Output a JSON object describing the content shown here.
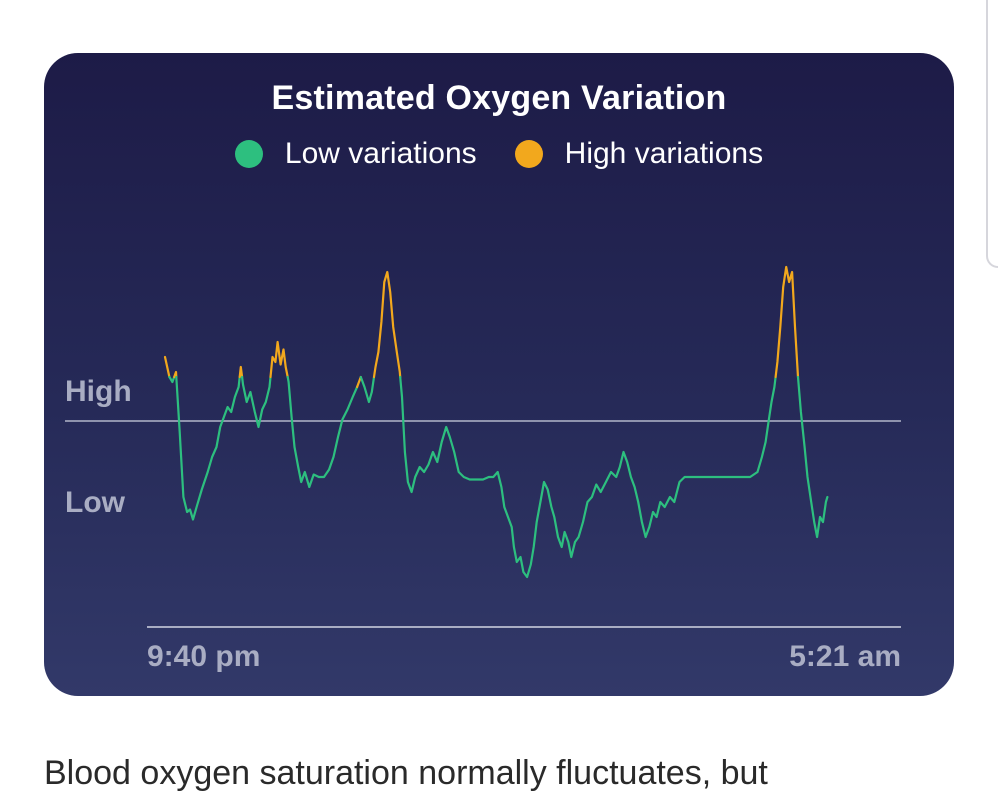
{
  "chart_data": {
    "type": "line",
    "title": "Estimated Oxygen Variation",
    "legend": [
      {
        "label": "Low variations",
        "color": "#2dbf7f"
      },
      {
        "label": "High variations",
        "color": "#f2a81d"
      }
    ],
    "y_axis": {
      "labels": [
        "High",
        "Low"
      ],
      "range": [
        0,
        1.6
      ],
      "threshold": 1.0,
      "threshold_label": "High",
      "low_label_value": 0.72
    },
    "x_axis": {
      "labels": [
        "9:40 pm",
        "5:21 am"
      ],
      "range": [
        0,
        100
      ]
    },
    "colors": {
      "low": "#2dbf7f",
      "high": "#f2a81d",
      "threshold_line": "#8f93ad",
      "axis_line": "#a9adc3",
      "tick_label": "#a9adc3"
    },
    "points": [
      [
        0.0,
        1.08
      ],
      [
        0.6,
        1.0
      ],
      [
        1.0,
        0.98
      ],
      [
        1.5,
        1.02
      ],
      [
        2.0,
        0.78
      ],
      [
        2.5,
        0.52
      ],
      [
        3.0,
        0.46
      ],
      [
        3.4,
        0.47
      ],
      [
        3.8,
        0.43
      ],
      [
        4.3,
        0.48
      ],
      [
        5.0,
        0.55
      ],
      [
        5.8,
        0.62
      ],
      [
        6.4,
        0.68
      ],
      [
        7.0,
        0.72
      ],
      [
        7.5,
        0.8
      ],
      [
        8.0,
        0.84
      ],
      [
        8.5,
        0.88
      ],
      [
        9.0,
        0.86
      ],
      [
        9.5,
        0.92
      ],
      [
        10.0,
        0.96
      ],
      [
        10.3,
        1.04
      ],
      [
        10.6,
        0.97
      ],
      [
        11.1,
        0.9
      ],
      [
        11.6,
        0.94
      ],
      [
        12.2,
        0.86
      ],
      [
        12.7,
        0.8
      ],
      [
        13.2,
        0.87
      ],
      [
        13.7,
        0.9
      ],
      [
        14.2,
        0.96
      ],
      [
        14.6,
        1.08
      ],
      [
        15.0,
        1.06
      ],
      [
        15.3,
        1.14
      ],
      [
        15.7,
        1.05
      ],
      [
        16.1,
        1.11
      ],
      [
        16.4,
        1.04
      ],
      [
        16.8,
        0.98
      ],
      [
        17.2,
        0.84
      ],
      [
        17.6,
        0.72
      ],
      [
        18.1,
        0.64
      ],
      [
        18.5,
        0.58
      ],
      [
        19.0,
        0.62
      ],
      [
        19.6,
        0.56
      ],
      [
        20.2,
        0.61
      ],
      [
        20.9,
        0.6
      ],
      [
        21.6,
        0.6
      ],
      [
        22.3,
        0.63
      ],
      [
        22.9,
        0.68
      ],
      [
        23.5,
        0.76
      ],
      [
        24.1,
        0.83
      ],
      [
        24.8,
        0.87
      ],
      [
        25.5,
        0.92
      ],
      [
        26.1,
        0.96
      ],
      [
        26.6,
        1.0
      ],
      [
        27.1,
        0.96
      ],
      [
        27.7,
        0.9
      ],
      [
        28.1,
        0.94
      ],
      [
        28.6,
        1.04
      ],
      [
        29.0,
        1.1
      ],
      [
        29.4,
        1.22
      ],
      [
        29.8,
        1.38
      ],
      [
        30.2,
        1.42
      ],
      [
        30.6,
        1.34
      ],
      [
        31.0,
        1.2
      ],
      [
        31.5,
        1.1
      ],
      [
        31.9,
        1.02
      ],
      [
        32.2,
        0.92
      ],
      [
        32.6,
        0.7
      ],
      [
        33.0,
        0.58
      ],
      [
        33.5,
        0.54
      ],
      [
        34.0,
        0.6
      ],
      [
        34.6,
        0.64
      ],
      [
        35.2,
        0.62
      ],
      [
        35.8,
        0.65
      ],
      [
        36.4,
        0.7
      ],
      [
        37.0,
        0.66
      ],
      [
        37.6,
        0.74
      ],
      [
        38.2,
        0.8
      ],
      [
        38.7,
        0.76
      ],
      [
        39.3,
        0.7
      ],
      [
        39.9,
        0.62
      ],
      [
        40.6,
        0.6
      ],
      [
        41.4,
        0.59
      ],
      [
        42.3,
        0.59
      ],
      [
        43.2,
        0.59
      ],
      [
        44.0,
        0.6
      ],
      [
        44.6,
        0.6
      ],
      [
        45.2,
        0.62
      ],
      [
        45.7,
        0.56
      ],
      [
        46.1,
        0.48
      ],
      [
        46.6,
        0.44
      ],
      [
        47.1,
        0.4
      ],
      [
        47.4,
        0.32
      ],
      [
        47.8,
        0.26
      ],
      [
        48.3,
        0.28
      ],
      [
        48.7,
        0.22
      ],
      [
        49.2,
        0.2
      ],
      [
        49.7,
        0.25
      ],
      [
        50.1,
        0.32
      ],
      [
        50.5,
        0.42
      ],
      [
        51.0,
        0.5
      ],
      [
        51.5,
        0.58
      ],
      [
        52.0,
        0.55
      ],
      [
        52.5,
        0.48
      ],
      [
        52.9,
        0.44
      ],
      [
        53.4,
        0.36
      ],
      [
        53.9,
        0.32
      ],
      [
        54.3,
        0.38
      ],
      [
        54.8,
        0.34
      ],
      [
        55.2,
        0.28
      ],
      [
        55.7,
        0.34
      ],
      [
        56.2,
        0.36
      ],
      [
        56.8,
        0.42
      ],
      [
        57.4,
        0.5
      ],
      [
        58.0,
        0.52
      ],
      [
        58.6,
        0.57
      ],
      [
        59.2,
        0.54
      ],
      [
        59.9,
        0.58
      ],
      [
        60.6,
        0.62
      ],
      [
        61.3,
        0.6
      ],
      [
        61.8,
        0.64
      ],
      [
        62.3,
        0.7
      ],
      [
        62.8,
        0.66
      ],
      [
        63.3,
        0.6
      ],
      [
        63.8,
        0.56
      ],
      [
        64.3,
        0.5
      ],
      [
        64.8,
        0.42
      ],
      [
        65.3,
        0.36
      ],
      [
        65.8,
        0.4
      ],
      [
        66.3,
        0.46
      ],
      [
        66.8,
        0.44
      ],
      [
        67.3,
        0.5
      ],
      [
        67.9,
        0.48
      ],
      [
        68.6,
        0.52
      ],
      [
        69.2,
        0.5
      ],
      [
        69.9,
        0.58
      ],
      [
        70.6,
        0.6
      ],
      [
        71.5,
        0.6
      ],
      [
        72.5,
        0.6
      ],
      [
        73.5,
        0.6
      ],
      [
        74.5,
        0.6
      ],
      [
        75.5,
        0.6
      ],
      [
        76.5,
        0.6
      ],
      [
        77.5,
        0.6
      ],
      [
        78.5,
        0.6
      ],
      [
        79.5,
        0.6
      ],
      [
        80.5,
        0.62
      ],
      [
        81.1,
        0.68
      ],
      [
        81.6,
        0.74
      ],
      [
        82.0,
        0.82
      ],
      [
        82.4,
        0.9
      ],
      [
        82.8,
        0.96
      ],
      [
        83.2,
        1.06
      ],
      [
        83.6,
        1.2
      ],
      [
        84.0,
        1.36
      ],
      [
        84.4,
        1.44
      ],
      [
        84.8,
        1.38
      ],
      [
        85.2,
        1.42
      ],
      [
        85.6,
        1.2
      ],
      [
        86.0,
        1.0
      ],
      [
        86.4,
        0.86
      ],
      [
        86.9,
        0.72
      ],
      [
        87.3,
        0.6
      ],
      [
        87.8,
        0.5
      ],
      [
        88.2,
        0.42
      ],
      [
        88.6,
        0.36
      ],
      [
        89.0,
        0.44
      ],
      [
        89.4,
        0.42
      ],
      [
        89.8,
        0.5
      ],
      [
        90.0,
        0.52
      ]
    ]
  },
  "x_ticks": [
    "9:40 pm",
    "5:21 am"
  ],
  "y_ticks": [
    "High",
    "Low"
  ],
  "page": {
    "body_text": "Blood oxygen saturation normally fluctuates, but"
  }
}
